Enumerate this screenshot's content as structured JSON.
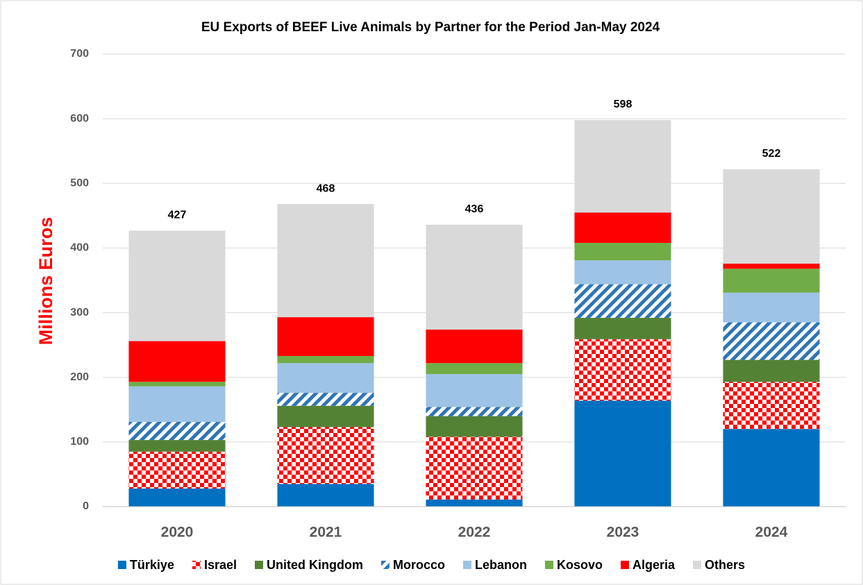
{
  "chart_data": {
    "type": "stacked_bar",
    "title": "EU Exports of BEEF Live Animals by Partner for the Period Jan-May 2024",
    "y_label": "Millions Euros",
    "categories": [
      "2020",
      "2021",
      "2022",
      "2023",
      "2024"
    ],
    "series": [
      {
        "name": "Türkiye",
        "color": "#0070c0",
        "values": [
          28,
          35,
          11,
          164,
          120
        ]
      },
      {
        "name": "Israel",
        "color": "#ff0000",
        "pattern": "checker",
        "values": [
          57,
          88,
          97,
          95,
          73
        ]
      },
      {
        "name": "United Kingdom",
        "color": "#548235",
        "values": [
          18,
          33,
          32,
          33,
          34
        ]
      },
      {
        "name": "Morocco",
        "color": "#2e75b6",
        "pattern": "stripes",
        "values": [
          28,
          20,
          14,
          52,
          58
        ]
      },
      {
        "name": "Lebanon",
        "color": "#9dc3e6",
        "values": [
          55,
          46,
          51,
          37,
          46
        ]
      },
      {
        "name": "Kosovo",
        "color": "#70ad47",
        "values": [
          7,
          11,
          17,
          27,
          37
        ]
      },
      {
        "name": "Algeria",
        "color": "#ff0000",
        "values": [
          63,
          60,
          52,
          47,
          8
        ]
      },
      {
        "name": "Others",
        "color": "#d9d9d9",
        "values": [
          171,
          175,
          162,
          143,
          146
        ]
      }
    ],
    "totals": [
      427,
      468,
      436,
      598,
      522
    ],
    "ylim": [
      0,
      700
    ],
    "yticks": [
      0,
      100,
      200,
      300,
      400,
      500,
      600,
      700
    ],
    "grid": true,
    "legend": "bottom"
  }
}
